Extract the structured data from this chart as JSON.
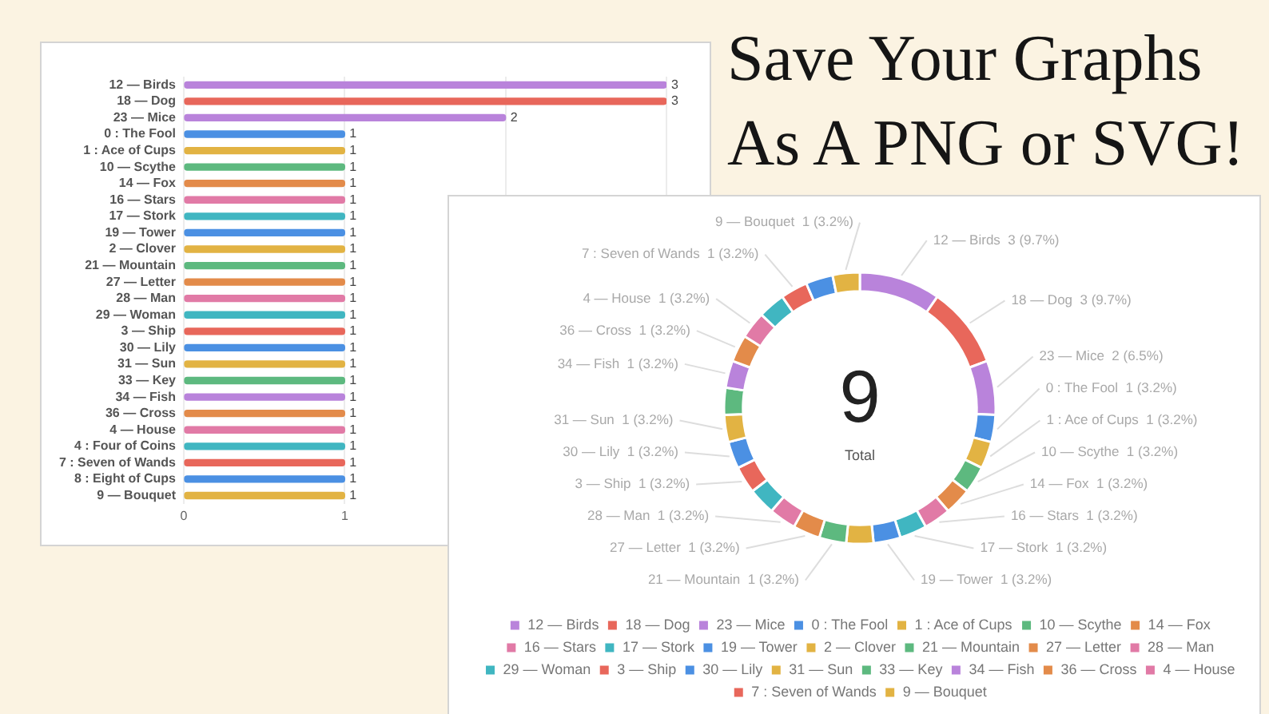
{
  "chart_data": [
    {
      "type": "bar",
      "orientation": "horizontal",
      "categories": [
        "12 — Birds",
        "18 — Dog",
        "23 — Mice",
        "0 : The Fool",
        "1 : Ace of Cups",
        "10 — Scythe",
        "14 — Fox",
        "16 — Stars",
        "17 — Stork",
        "19 — Tower",
        "2 — Clover",
        "21 — Mountain",
        "27 — Letter",
        "28 — Man",
        "29 — Woman",
        "3 — Ship",
        "30 — Lily",
        "31 — Sun",
        "33 — Key",
        "34 — Fish",
        "36 — Cross",
        "4 — House",
        "4 : Four of Coins",
        "7 : Seven of Wands",
        "8 : Eight of Cups",
        "9 — Bouquet"
      ],
      "values": [
        3,
        3,
        2,
        1,
        1,
        1,
        1,
        1,
        1,
        1,
        1,
        1,
        1,
        1,
        1,
        1,
        1,
        1,
        1,
        1,
        1,
        1,
        1,
        1,
        1,
        1
      ],
      "colors": [
        "#b983db",
        "#e8675b",
        "#b983db",
        "#4b90e3",
        "#e2b343",
        "#5db97f",
        "#e38b4a",
        "#e17aa6",
        "#40b6c1",
        "#4b90e3",
        "#e2b343",
        "#5db97f",
        "#e38b4a",
        "#e17aa6",
        "#40b6c1",
        "#e8675b",
        "#4b90e3",
        "#e2b343",
        "#5db97f",
        "#b983db",
        "#e38b4a",
        "#e17aa6",
        "#40b6c1",
        "#e8675b",
        "#4b90e3",
        "#e2b343"
      ],
      "xlim": [
        0,
        3
      ],
      "xticks": [
        0,
        1,
        {
          "value": 2,
          "label": null
        },
        {
          "value": 3,
          "label": null
        }
      ],
      "grid": "x",
      "data_labels": true
    },
    {
      "type": "other",
      "title": "Save Your Graphs As A PNG or SVG!"
    },
    {
      "type": "donut",
      "categories": [
        "12 — Birds",
        "18 — Dog",
        "23 — Mice",
        "0 : The Fool",
        "1 : Ace of Cups",
        "10 — Scythe",
        "14 — Fox",
        "16 — Stars",
        "17 — Stork",
        "19 — Tower",
        "2 — Clover",
        "21 — Mountain",
        "27 — Letter",
        "28 — Man",
        "29 — Woman",
        "3 — Ship",
        "30 — Lily",
        "31 — Sun",
        "33 — Key",
        "34 — Fish",
        "36 — Cross",
        "4 — House",
        null,
        "7 : Seven of Wands",
        null,
        "9 — Bouquet"
      ],
      "values": [
        3,
        3,
        2,
        1,
        1,
        1,
        1,
        1,
        1,
        1,
        1,
        1,
        1,
        1,
        1,
        1,
        1,
        1,
        1,
        1,
        1,
        1,
        1,
        1,
        1,
        1
      ],
      "colors": [
        "#b983db",
        "#e8675b",
        "#b983db",
        "#4b90e3",
        "#e2b343",
        "#5db97f",
        "#e38b4a",
        "#e17aa6",
        "#40b6c1",
        "#4b90e3",
        "#e2b343",
        "#5db97f",
        "#e38b4a",
        "#e17aa6",
        "#40b6c1",
        "#e8675b",
        "#4b90e3",
        "#e2b343",
        "#5db97f",
        "#b983db",
        "#e38b4a",
        "#e17aa6",
        "#40b6c1",
        "#e8675b",
        "#4b90e3",
        "#e2b343"
      ],
      "value_labels": [
        "3 (9.7%)",
        "3 (9.7%)",
        "2 (6.5%)",
        "1 (3.2%)",
        "1 (3.2%)",
        "1 (3.2%)",
        "1 (3.2%)",
        "1 (3.2%)",
        "1 (3.2%)",
        "1 (3.2%)",
        null,
        "1 (3.2%)",
        "1 (3.2%)",
        "1 (3.2%)",
        null,
        "1 (3.2%)",
        "1 (3.2%)",
        "1 (3.2%)",
        null,
        "1 (3.2%)",
        "1 (3.2%)",
        "1 (3.2%)",
        null,
        "1 (3.2%)",
        null,
        "1 (3.2%)"
      ],
      "legend": "bottom",
      "annotations": [
        "9",
        "Total"
      ]
    }
  ]
}
